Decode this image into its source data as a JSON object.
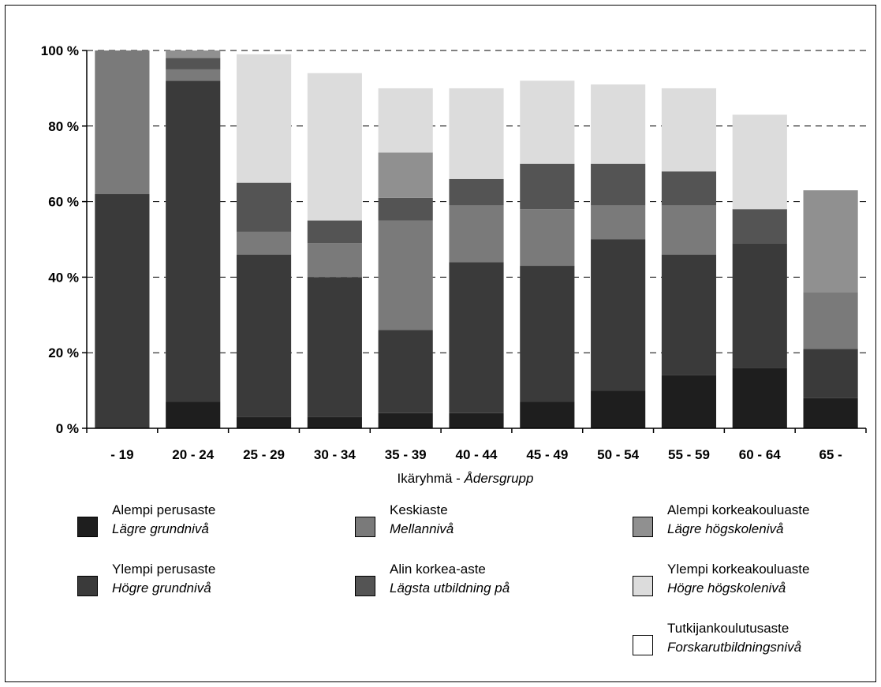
{
  "chart_data": {
    "type": "bar",
    "stacked": true,
    "value_unit": "%",
    "categories": [
      "- 19",
      "20 - 24",
      "25 - 29",
      "30 - 34",
      "35 - 39",
      "40 - 44",
      "45 - 49",
      "50 - 54",
      "55 - 59",
      "60 - 64",
      "65 -"
    ],
    "xlabel": "Ikäryhmä - ",
    "xlabel_italic": "Ådersgrupp",
    "ylim": [
      0,
      100
    ],
    "yticks": [
      0,
      20,
      40,
      60,
      80,
      100
    ],
    "ytick_labels": [
      "0 %",
      "20 %",
      "40 %",
      "60 %",
      "80 %",
      "100 %"
    ],
    "grid": "horizontal dashed",
    "series": [
      {
        "name": "Alempi perusaste",
        "name_sv": "Lägre grundnivå",
        "color": "#1e1e1e",
        "values": [
          0,
          7,
          3,
          3,
          4,
          4,
          7,
          10,
          14,
          16,
          8
        ]
      },
      {
        "name": "Ylempi perusaste",
        "name_sv": "Högre grundnivå",
        "color": "#3a3a3a",
        "values": [
          62,
          85,
          43,
          37,
          22,
          40,
          36,
          40,
          32,
          33,
          13
        ]
      },
      {
        "name": "Keskiaste",
        "name_sv": "Mellannivå",
        "color": "#7a7a7a",
        "values": [
          38,
          3,
          6,
          9,
          29,
          15,
          15,
          9,
          13,
          0,
          15
        ]
      },
      {
        "name": "Alin korkea-aste",
        "name_sv": "Lägsta utbildning på",
        "color": "#545454",
        "values": [
          0,
          3,
          13,
          6,
          6,
          7,
          12,
          11,
          9,
          9,
          0
        ]
      },
      {
        "name": "Alempi korkeakouluaste",
        "name_sv": "Lägre högskolenivå",
        "color": "#909090",
        "values": [
          0,
          2,
          0,
          0,
          12,
          0,
          0,
          0,
          0,
          0,
          27
        ]
      },
      {
        "name": "Ylempi korkeakouluaste",
        "name_sv": "Högre högskolenivå",
        "color": "#dcdcdc",
        "values": [
          0,
          0,
          34,
          39,
          17,
          24,
          22,
          21,
          22,
          25,
          0
        ]
      },
      {
        "name": "Tutkijankoulutusaste",
        "name_sv": "Forskarutbildningsnivå",
        "color": "#ffffff",
        "values": [
          0,
          0,
          0,
          0,
          0,
          0,
          0,
          0,
          0,
          0,
          0
        ]
      }
    ]
  }
}
